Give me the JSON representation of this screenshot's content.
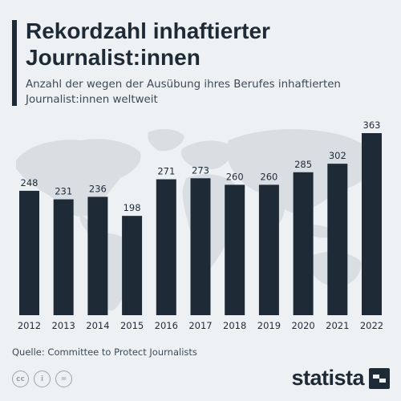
{
  "header": {
    "title": "Rekordzahl inhaftierter Journalist:innen",
    "subtitle": "Anzahl der wegen der Ausübung ihres Berufes inhaftierten Journalist:innen weltweit"
  },
  "footer": {
    "source": "Quelle: Committee to Protect Journalists",
    "license_icons": [
      {
        "name": "creative-commons-icon",
        "glyph": "cc"
      },
      {
        "name": "attribution-icon",
        "glyph": "i"
      },
      {
        "name": "no-derivatives-icon",
        "glyph": "="
      }
    ],
    "brand": "statista"
  },
  "colors": {
    "bar": "#1f2a37",
    "background": "#eef1f4",
    "map": "#d9dee3",
    "text": "#1f2a37"
  },
  "chart_data": {
    "type": "bar",
    "title": "Rekordzahl inhaftierter Journalist:innen",
    "categories": [
      "2012",
      "2013",
      "2014",
      "2015",
      "2016",
      "2017",
      "2018",
      "2019",
      "2020",
      "2021",
      "2022"
    ],
    "values": [
      248,
      231,
      236,
      198,
      271,
      273,
      260,
      260,
      285,
      302,
      363
    ],
    "ylim": [
      0,
      363
    ],
    "grid": false,
    "xlabel": "",
    "ylabel": ""
  }
}
